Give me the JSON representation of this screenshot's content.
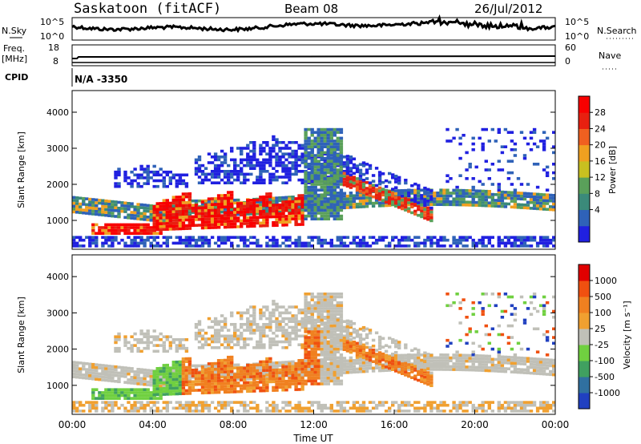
{
  "header": {
    "station": "Saskatoon (fitACF)",
    "beam": "Beam 08",
    "date": "26/Jul/2012"
  },
  "top_panels": {
    "nsky_label": "N.Sky",
    "nsky_ticks": [
      "10^5",
      "10^0"
    ],
    "nsearch_label": "N.Search",
    "nsearch_ticks": [
      "10^5",
      "10^0"
    ],
    "freq_label_1": "Freq.",
    "freq_label_2": "[MHz]",
    "freq_ticks": [
      "18",
      "8"
    ],
    "nave_label": "Nave",
    "nave_ticks": [
      "60",
      "0"
    ],
    "cpid_label": "CPID",
    "cpid_value": "N/A -3350"
  },
  "chart_data": [
    {
      "type": "heatmap",
      "name": "power",
      "ylabel": "Slant Range [km]",
      "ylim": [
        200,
        4600
      ],
      "yticks": [
        "1000",
        "2000",
        "3000",
        "4000"
      ],
      "colorbar_label": "Power [dB]",
      "colorbar_ticks": [
        "28",
        "24",
        "20",
        "16",
        "12",
        "8",
        "4"
      ],
      "colors": [
        "#2020e0",
        "#2f62b8",
        "#3b8a7a",
        "#5aa05a",
        "#c8c020",
        "#f0a020",
        "#f06020",
        "#e82010",
        "#f80000"
      ]
    },
    {
      "type": "heatmap",
      "name": "velocity",
      "ylabel": "Slant Range [km]",
      "ylim": [
        200,
        4600
      ],
      "yticks": [
        "1000",
        "2000",
        "3000",
        "4000"
      ],
      "colorbar_label": "Velocity [m s⁻¹]",
      "colorbar_ticks": [
        "1000",
        "500",
        "100",
        "25",
        "-25",
        "-100",
        "-500",
        "-1000"
      ],
      "colors": [
        "#2040c0",
        "#3070a0",
        "#40a060",
        "#70d040",
        "#c0c0b8",
        "#f0a030",
        "#f08020",
        "#f05010",
        "#e00000"
      ],
      "xlabel": "Time UT",
      "xticks": [
        "00:00",
        "04:00",
        "08:00",
        "12:00",
        "16:00",
        "20:00",
        "00:00"
      ]
    }
  ]
}
